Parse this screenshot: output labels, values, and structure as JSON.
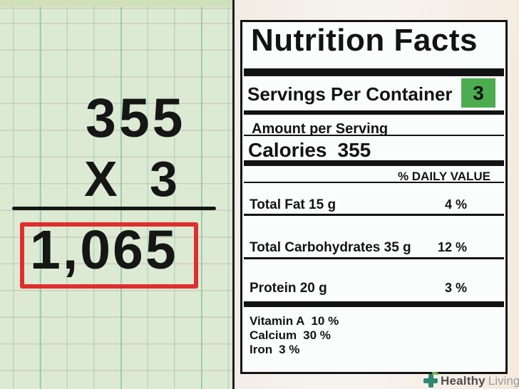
{
  "equation": {
    "multiplicand": "355",
    "operator": "X",
    "multiplier": "3",
    "result": "1,065"
  },
  "nutrition_label": {
    "title": "Nutrition Facts",
    "servings": {
      "label": "Servings Per Container",
      "value": "3"
    },
    "amount_per_serving": "Amount per Serving",
    "calories": {
      "label": "Calories",
      "value": "355"
    },
    "daily_value_header": "% DAILY VALUE",
    "nutrients": [
      {
        "name": "Total Fat 15 g",
        "percent": "4 %"
      },
      {
        "name": "Total Carbohydrates 35 g",
        "percent": "12 %"
      },
      {
        "name": "Protein 20 g",
        "percent": "3 %"
      }
    ],
    "micronutrients": [
      {
        "name": "Vitamin A",
        "percent": "10 %"
      },
      {
        "name": "Calcium",
        "percent": "30 %"
      },
      {
        "name": "Iron",
        "percent": "3 %"
      }
    ]
  },
  "watermark": {
    "brand_bold": "Healthy",
    "brand_light": "Living"
  },
  "colors": {
    "paper_green": "#dcead3",
    "servings_badge_green": "#4bad4f",
    "result_box_red": "#df2e2e",
    "watermark_cross_green": "#2f8873",
    "watermark_leaf_green": "#6cb544",
    "label_background": "#fbfdfc",
    "ink_black": "#131313"
  }
}
